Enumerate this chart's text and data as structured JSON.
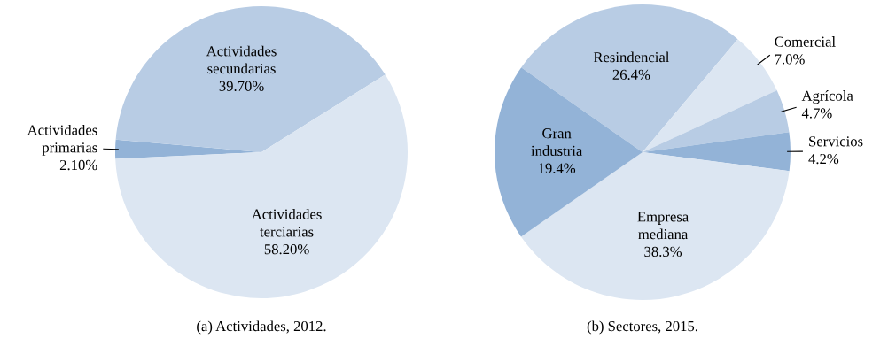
{
  "chart_data": [
    {
      "type": "pie",
      "title": "(a) Actividades, 2012.",
      "categories": [
        "Actividades primarias",
        "Actividades secundarias",
        "Actividades terciarias"
      ],
      "values": [
        2.1,
        39.7,
        58.2
      ],
      "value_labels": [
        "2.10%",
        "39.70%",
        "58.20%"
      ],
      "colors": [
        "#93b3d7",
        "#b8cce4",
        "#dce6f2"
      ]
    },
    {
      "type": "pie",
      "title": "(b) Sectores, 2015.",
      "categories": [
        "Resindencial",
        "Comercial",
        "Agrícola",
        "Servicios",
        "Empresa mediana",
        "Gran industria"
      ],
      "values": [
        26.4,
        7.0,
        4.7,
        4.2,
        38.3,
        19.4
      ],
      "value_labels": [
        "26.4%",
        "7.0%",
        "4.7%",
        "4.2%",
        "38.3%",
        "19.4%"
      ],
      "colors": [
        "#b8cce4",
        "#dce6f2",
        "#b8cce4",
        "#93b3d7",
        "#dce6f2",
        "#93b3d7"
      ]
    }
  ]
}
